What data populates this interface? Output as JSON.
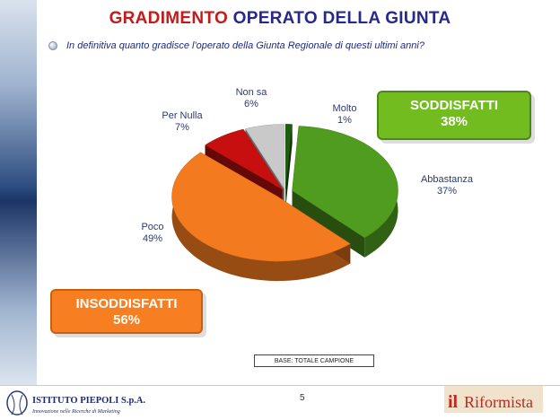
{
  "header": {
    "title_part1": "GRADIMENTO",
    "title_part2": "OPERATO DELLA GIUNTA",
    "question": "In definitiva quanto gradisce l'operato della Giunta Regionale di questi ultimi anni?"
  },
  "chart_data": {
    "type": "pie",
    "slices": [
      {
        "label": "Molto",
        "value": 1,
        "display": "1%",
        "color": "#1f5c10"
      },
      {
        "label": "Abbastanza",
        "value": 37,
        "display": "37%",
        "color": "#4f9c1e"
      },
      {
        "label": "Poco",
        "value": 49,
        "display": "49%",
        "color": "#f47a20"
      },
      {
        "label": "Per Nulla",
        "value": 7,
        "display": "7%",
        "color": "#c80f0f"
      },
      {
        "label": "Non sa",
        "value": 6,
        "display": "6%",
        "color": "#c9c9c9"
      }
    ]
  },
  "callouts": {
    "satisfied_title": "SODDISFATTI",
    "satisfied_value": "38%",
    "unsatisfied_title": "INSODDISFATTI",
    "unsatisfied_value": "56%"
  },
  "footer": {
    "base": "BASE: TOTALE CAMPIONE",
    "page": "5",
    "logo_left_name": "ISTITUTO PIEPOLI S.p.A.",
    "logo_left_tagline": "Innovazione nelle Ricerche di Marketing",
    "logo_right_prefix": "il",
    "logo_right_name": "Riformista"
  }
}
